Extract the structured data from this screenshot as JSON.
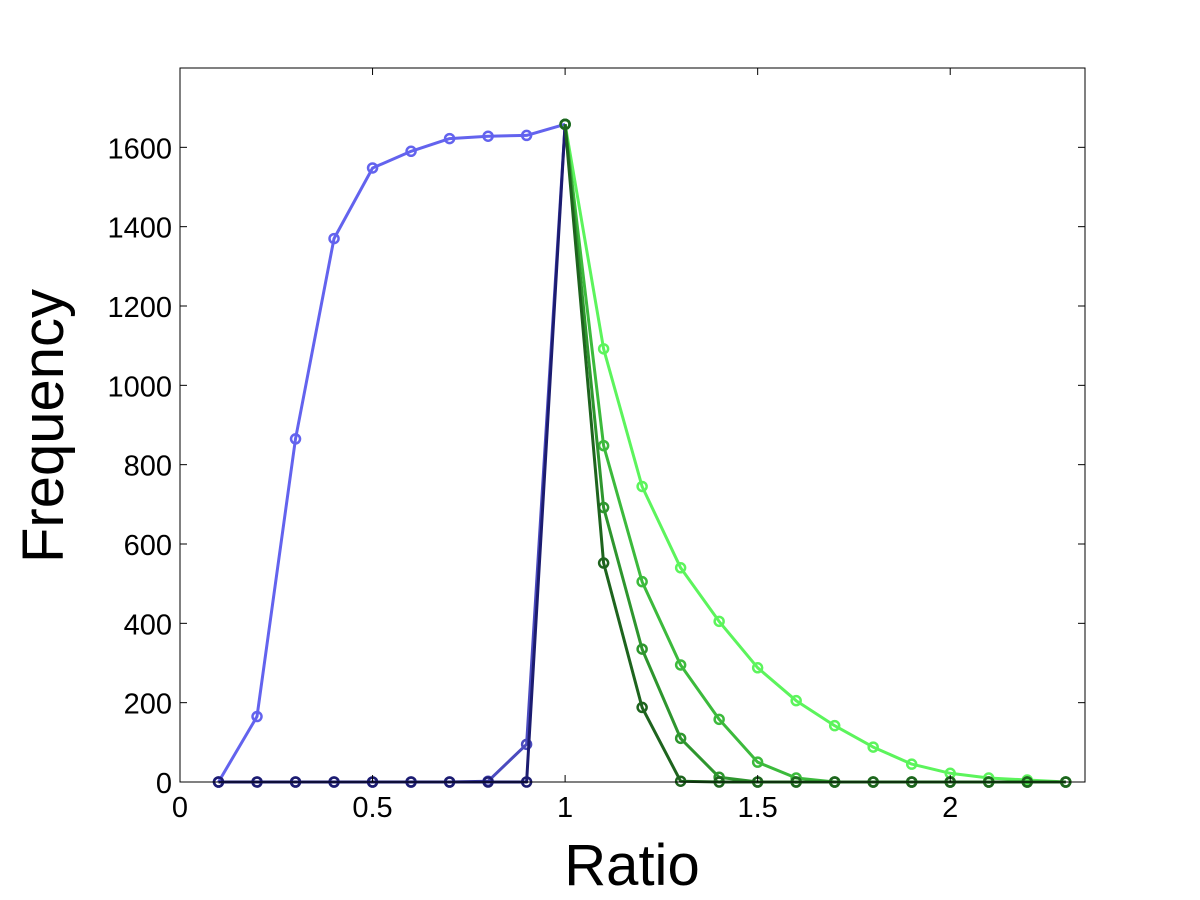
{
  "chart_data": {
    "type": "line",
    "title": "",
    "xlabel": "Ratio",
    "ylabel": "Frequency",
    "xlim": [
      0,
      2.35
    ],
    "ylim": [
      0,
      1800
    ],
    "xticks": [
      0,
      0.5,
      1,
      1.5,
      2
    ],
    "xtick_labels": [
      "0",
      "0.5",
      "1",
      "1.5",
      "2"
    ],
    "yticks": [
      0,
      200,
      400,
      600,
      800,
      1000,
      1200,
      1400,
      1600
    ],
    "ytick_labels": [
      "0",
      "200",
      "400",
      "600",
      "800",
      "1000",
      "1200",
      "1400",
      "1600"
    ],
    "grid": false,
    "series": [
      {
        "color": "#6363ee",
        "x": [
          0.1,
          0.2,
          0.3,
          0.4,
          0.5,
          0.6,
          0.7,
          0.8,
          0.9,
          1.0
        ],
        "y": [
          0,
          165,
          865,
          1370,
          1548,
          1590,
          1622,
          1628,
          1630,
          1658
        ]
      },
      {
        "color": "#4b4bbf",
        "x": [
          0.1,
          0.2,
          0.3,
          0.4,
          0.5,
          0.6,
          0.7,
          0.8,
          0.9,
          1.0
        ],
        "y": [
          0,
          0,
          0,
          0,
          0,
          0,
          0,
          2,
          95,
          1658
        ]
      },
      {
        "color": "#1c1c70",
        "x": [
          0.1,
          0.2,
          0.3,
          0.4,
          0.5,
          0.6,
          0.7,
          0.8,
          0.9,
          1.0
        ],
        "y": [
          0,
          0,
          0,
          0,
          0,
          0,
          0,
          0,
          0,
          1658
        ]
      },
      {
        "color": "#5cf45c",
        "x": [
          1.0,
          1.1,
          1.2,
          1.3,
          1.4,
          1.5,
          1.6,
          1.7,
          1.8,
          1.9,
          2.0,
          2.1,
          2.2,
          2.3
        ],
        "y": [
          1658,
          1092,
          745,
          540,
          405,
          288,
          205,
          142,
          88,
          45,
          22,
          10,
          5,
          0
        ]
      },
      {
        "color": "#3cba3c",
        "x": [
          1.0,
          1.1,
          1.2,
          1.3,
          1.4,
          1.5,
          1.6,
          1.7,
          1.8,
          1.9,
          2.0,
          2.1,
          2.2,
          2.3
        ],
        "y": [
          1658,
          848,
          505,
          295,
          158,
          50,
          10,
          0,
          0,
          0,
          0,
          0,
          0,
          0
        ]
      },
      {
        "color": "#2e962e",
        "x": [
          1.0,
          1.1,
          1.2,
          1.3,
          1.4,
          1.5,
          1.6,
          1.7,
          1.8,
          1.9,
          2.0,
          2.1,
          2.2,
          2.3
        ],
        "y": [
          1658,
          692,
          335,
          110,
          12,
          0,
          0,
          0,
          0,
          0,
          0,
          0,
          0,
          0
        ]
      },
      {
        "color": "#1e641e",
        "x": [
          1.0,
          1.1,
          1.2,
          1.3,
          1.4,
          1.5,
          1.6,
          1.7,
          1.8,
          1.9,
          2.0,
          2.1,
          2.2,
          2.3
        ],
        "y": [
          1658,
          552,
          188,
          2,
          0,
          0,
          0,
          0,
          0,
          0,
          0,
          0,
          0,
          0
        ]
      }
    ]
  }
}
